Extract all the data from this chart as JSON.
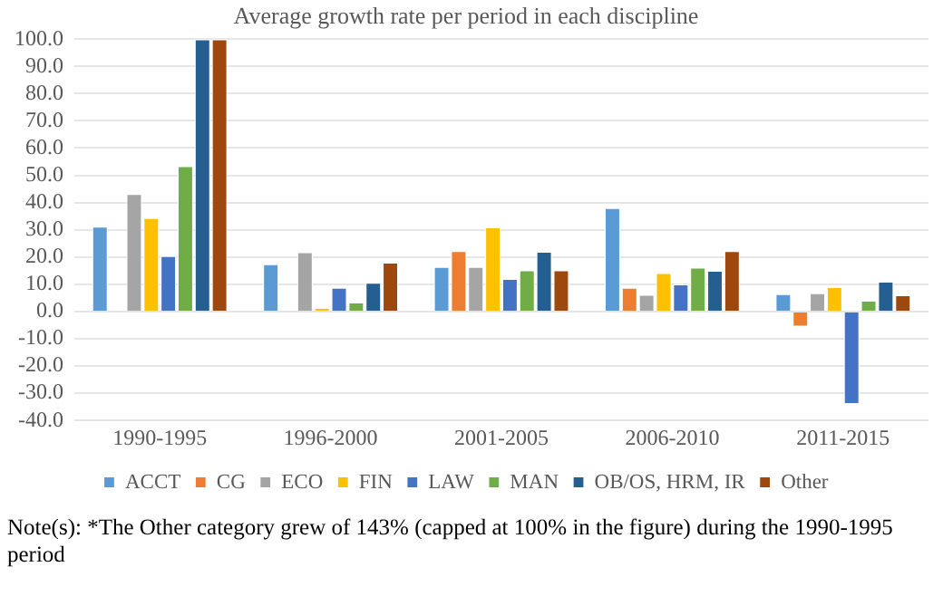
{
  "chart_data": {
    "type": "bar",
    "title": "Average growth rate per period in each discipline",
    "categories": [
      "1990-1995",
      "1996-2000",
      "2001-2005",
      "2006-2010",
      "2011-2015"
    ],
    "series": [
      {
        "name": "ACCT",
        "color": "#5b9bd5",
        "values": [
          31.2,
          17.4,
          16.4,
          38,
          6.4
        ]
      },
      {
        "name": "CG",
        "color": "#ed7d31",
        "values": [
          null,
          null,
          22.2,
          8.8,
          -5.6
        ]
      },
      {
        "name": "ECO",
        "color": "#a5a5a5",
        "values": [
          43.2,
          21.8,
          16.4,
          6.2,
          6.8
        ]
      },
      {
        "name": "FIN",
        "color": "#ffc000",
        "values": [
          34.4,
          1.4,
          31,
          14.2,
          9
        ]
      },
      {
        "name": "LAW",
        "color": "#4472c4",
        "values": [
          20.4,
          8.8,
          12,
          10,
          -34
        ]
      },
      {
        "name": "MAN",
        "color": "#70ad47",
        "values": [
          53.4,
          3.4,
          15.2,
          16.2,
          4
        ]
      },
      {
        "name": "OB/OS, HRM, IR",
        "color": "#255e91",
        "values": [
          100,
          10.6,
          22,
          15,
          11
        ]
      },
      {
        "name": "Other",
        "color": "#9e480e",
        "values": [
          100,
          18,
          15.2,
          22.2,
          6
        ]
      }
    ],
    "ylim": [
      -40,
      100
    ],
    "yticks": [
      {
        "value": -40,
        "label": "-40.0"
      },
      {
        "value": -30,
        "label": "-30.0"
      },
      {
        "value": -20,
        "label": "-20.0"
      },
      {
        "value": -10,
        "label": "-10.0"
      },
      {
        "value": 0,
        "label": "0.0"
      },
      {
        "value": 10,
        "label": "10.0"
      },
      {
        "value": 20,
        "label": "20.0"
      },
      {
        "value": 30,
        "label": "30.0"
      },
      {
        "value": 40,
        "label": "40.0"
      },
      {
        "value": 50,
        "label": "50.0"
      },
      {
        "value": 60,
        "label": "60.0"
      },
      {
        "value": 70,
        "label": "70.0"
      },
      {
        "value": 80,
        "label": "80.0"
      },
      {
        "value": 90,
        "label": "90.0"
      },
      {
        "value": 100,
        "label": "100.0"
      }
    ],
    "grid": "y",
    "legend": "bottom",
    "annotations": [
      "Note(s): *The Other category grew of 143% (capped at 100% in the figure) during the 1990-1995 period"
    ]
  }
}
